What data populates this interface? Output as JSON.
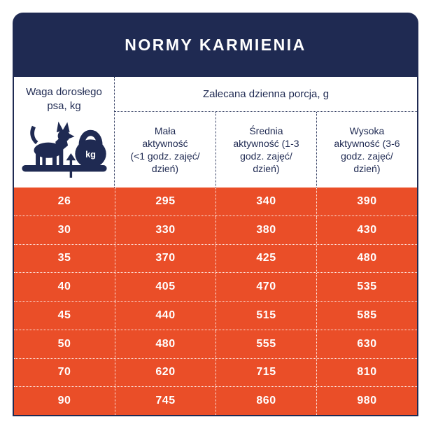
{
  "title": "NORMY KARMIENIA",
  "colors": {
    "navy": "#1F2A52",
    "orange": "#EA4E28",
    "text_light": "#FFFFFF"
  },
  "header": {
    "weight_label": "Waga dorosłego\npsa, kg",
    "portion_label": "Zalecana dzienna porcja, g",
    "activity_columns": [
      "Mała\naktywność\n(<1 godz. zajęć/\ndzień)",
      "Średnia\naktywność (1-3\ngodz. zajęć/\ndzień)",
      "Wysoka\naktywność (3-6\ngodz. zajęć/\ndzień)"
    ]
  },
  "icon": {
    "name": "dog-and-kettlebell-scale-icon",
    "kettlebell_label": "kg"
  },
  "chart_data": {
    "type": "table",
    "title": "NORMY KARMIENIA",
    "columns": [
      "Waga dorosłego psa, kg",
      "Mała aktywność (<1 godz. zajęć/dzień)",
      "Średnia aktywność (1-3 godz. zajęć/dzień)",
      "Wysoka aktywność (3-6 godz. zajęć/dzień)"
    ],
    "units_note": "Zalecana dzienna porcja, g",
    "rows": [
      [
        "26",
        "295",
        "340",
        "390"
      ],
      [
        "30",
        "330",
        "380",
        "430"
      ],
      [
        "35",
        "370",
        "425",
        "480"
      ],
      [
        "40",
        "405",
        "470",
        "535"
      ],
      [
        "45",
        "440",
        "515",
        "585"
      ],
      [
        "50",
        "480",
        "555",
        "630"
      ],
      [
        "70",
        "620",
        "715",
        "810"
      ],
      [
        "90",
        "745",
        "860",
        "980"
      ]
    ]
  }
}
